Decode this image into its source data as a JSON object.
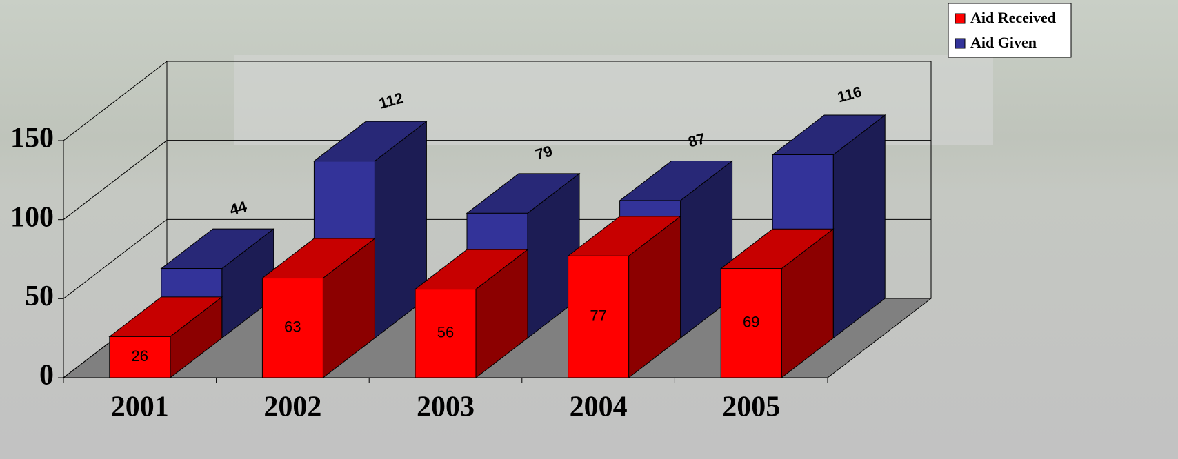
{
  "chart_data": {
    "type": "bar3d",
    "categories": [
      "2001",
      "2002",
      "2003",
      "2004",
      "2005"
    ],
    "series": [
      {
        "name": "Aid Received",
        "color": "#ff0000",
        "values": [
          26,
          63,
          56,
          77,
          69
        ]
      },
      {
        "name": "Aid Given",
        "color": "#333399",
        "values": [
          44,
          112,
          79,
          87,
          116
        ]
      }
    ],
    "ylim": [
      0,
      150
    ],
    "yticks": [
      0,
      50,
      100,
      150
    ],
    "grid": true,
    "legend": "top-right"
  }
}
